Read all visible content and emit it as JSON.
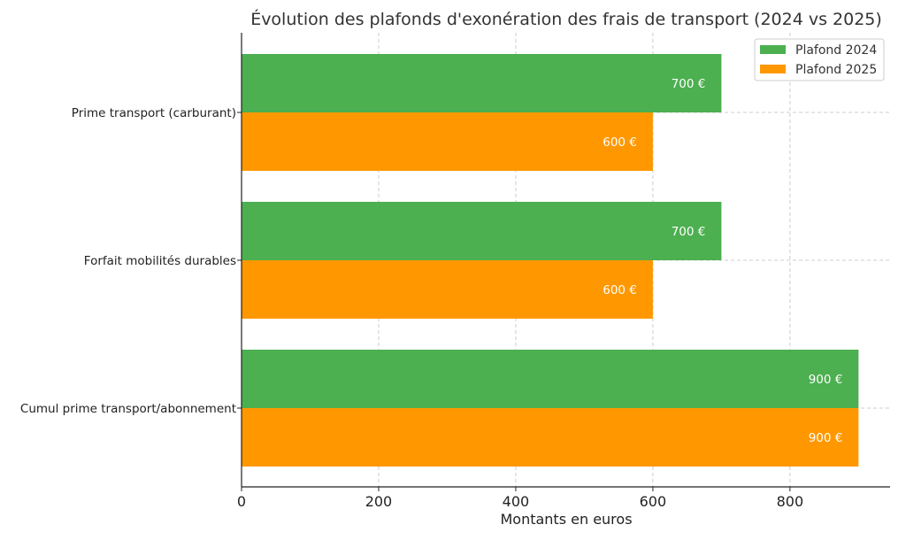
{
  "chart_data": {
    "type": "bar",
    "orientation": "horizontal",
    "title": "Évolution des plafonds d'exonération des frais de transport (2024 vs 2025)",
    "xlabel": "Montants en euros",
    "ylabel": "",
    "xlim": [
      0,
      946
    ],
    "xticks": [
      0,
      200,
      400,
      600,
      800
    ],
    "grid": true,
    "legend_position": "top-right",
    "categories": [
      "Prime transport (carburant)",
      "Forfait mobilités durables",
      "Cumul prime transport/abonnement"
    ],
    "series": [
      {
        "name": "Plafond 2024",
        "color": "#4caf50",
        "values": [
          700,
          700,
          900
        ],
        "labels": [
          "700 €",
          "700 €",
          "900 €"
        ]
      },
      {
        "name": "Plafond 2025",
        "color": "#ff9800",
        "values": [
          600,
          600,
          900
        ],
        "labels": [
          "600 €",
          "600 €",
          "900 €"
        ]
      }
    ]
  }
}
